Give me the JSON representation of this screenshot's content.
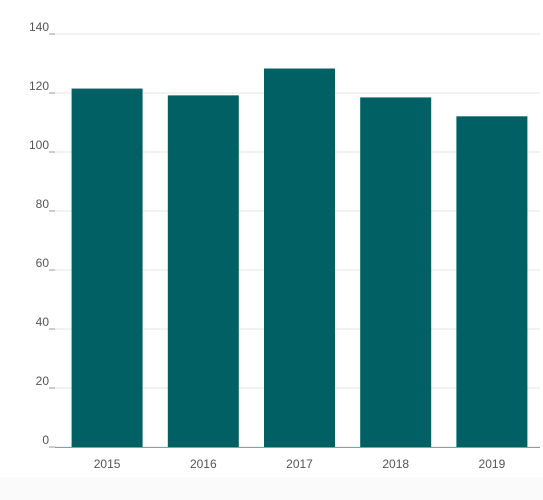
{
  "chart_data": {
    "type": "bar",
    "categories": [
      "2015",
      "2016",
      "2017",
      "2018",
      "2019"
    ],
    "values": [
      121.5,
      119.2,
      128.3,
      118.5,
      112.1
    ],
    "title": "",
    "xlabel": "",
    "ylabel": "",
    "ylim": [
      0,
      140
    ],
    "yticks": [
      "0",
      "20",
      "40",
      "60",
      "80",
      "100",
      "120",
      "140"
    ],
    "grid": true,
    "legend": "none",
    "colors": {
      "bar": "#006064",
      "grid": "#e6e6e6",
      "axis": "#999999",
      "text": "#555555"
    }
  }
}
